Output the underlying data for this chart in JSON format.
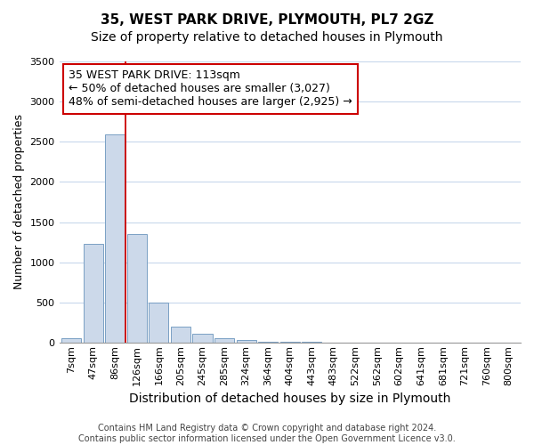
{
  "title": "35, WEST PARK DRIVE, PLYMOUTH, PL7 2GZ",
  "subtitle": "Size of property relative to detached houses in Plymouth",
  "xlabel": "Distribution of detached houses by size in Plymouth",
  "ylabel": "Number of detached properties",
  "bar_labels": [
    "7sqm",
    "47sqm",
    "86sqm",
    "126sqm",
    "166sqm",
    "205sqm",
    "245sqm",
    "285sqm",
    "324sqm",
    "364sqm",
    "404sqm",
    "443sqm",
    "483sqm",
    "522sqm",
    "562sqm",
    "602sqm",
    "641sqm",
    "681sqm",
    "721sqm",
    "760sqm",
    "800sqm"
  ],
  "bar_heights": [
    50,
    1230,
    2590,
    1350,
    500,
    200,
    110,
    55,
    30,
    15,
    8,
    5,
    3,
    0,
    0,
    0,
    0,
    0,
    0,
    0,
    0
  ],
  "bar_color": "#ccd9ea",
  "bar_edge_color": "#7aa0c4",
  "vline_color": "#cc0000",
  "annotation_title": "35 WEST PARK DRIVE: 113sqm",
  "annotation_line1": "← 50% of detached houses are smaller (3,027)",
  "annotation_line2": "48% of semi-detached houses are larger (2,925) →",
  "annotation_box_color": "#ffffff",
  "annotation_box_edge": "#cc0000",
  "ylim": [
    0,
    3500
  ],
  "yticks": [
    0,
    500,
    1000,
    1500,
    2000,
    2500,
    3000,
    3500
  ],
  "footer1": "Contains HM Land Registry data © Crown copyright and database right 2024.",
  "footer2": "Contains public sector information licensed under the Open Government Licence v3.0.",
  "title_fontsize": 11,
  "subtitle_fontsize": 10,
  "xlabel_fontsize": 10,
  "ylabel_fontsize": 9,
  "tick_fontsize": 8,
  "annotation_fontsize": 9,
  "footer_fontsize": 7
}
